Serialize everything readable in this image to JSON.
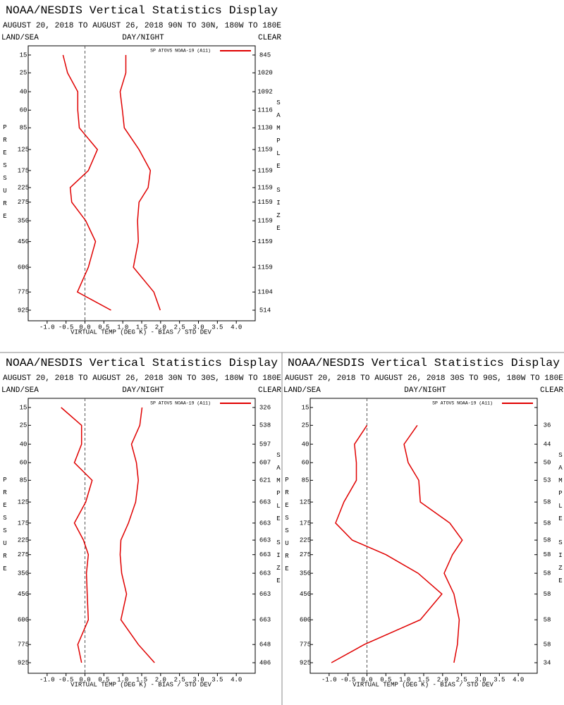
{
  "chart_data": [
    {
      "type": "line",
      "title": "NOAA/NESDIS Vertical Statistics Display",
      "subtitle": "AUGUST 20, 2018 TO AUGUST 26, 2018 90N TO 30N, 180W TO 180E",
      "top_labels": [
        "LAND/SEA",
        "DAY/NIGHT",
        "CLEAR"
      ],
      "ylabel": "PRESSURE",
      "y2label": "SAMPLE SIZE",
      "xlabel": "VIRTUAL TEMP (DEG K) - BIAS / STD DEV",
      "categories": [
        15,
        25,
        40,
        60,
        85,
        125,
        175,
        225,
        275,
        350,
        450,
        600,
        775,
        925
      ],
      "sample_size": [
        845,
        1020,
        1092,
        1116,
        1130,
        1159,
        1159,
        1159,
        1159,
        1159,
        1159,
        1159,
        1104,
        514
      ],
      "series": [
        {
          "name": "SP ATOVS NOAA-19 (A11)",
          "color": "#e00000",
          "values": [
            -0.58,
            -0.46,
            -0.19,
            -0.19,
            -0.15,
            0.33,
            0.09,
            -0.39,
            -0.35,
            0.02,
            0.28,
            0.09,
            -0.2,
            0.69
          ],
          "std_dev": [
            1.08,
            1.08,
            0.93,
            0.99,
            1.04,
            1.43,
            1.73,
            1.67,
            1.43,
            1.39,
            1.41,
            1.28,
            1.82,
            1.99
          ]
        }
      ],
      "xlim": [
        -1.5,
        4.5
      ],
      "xticks": [
        {
          "value": -1,
          "label": "-1.0"
        },
        -0.5,
        {
          "value": 0,
          "label": "0.0"
        },
        0.5,
        {
          "value": 1,
          "label": "1.0"
        },
        1.5,
        {
          "value": 2,
          "label": "2.0"
        },
        2.5,
        {
          "value": 3,
          "label": "3.0"
        },
        3.5,
        {
          "value": 4,
          "label": "4.0"
        }
      ]
    },
    {
      "type": "line",
      "title": "NOAA/NESDIS Vertical Statistics Display",
      "subtitle": "AUGUST 20, 2018 TO AUGUST 26, 2018 30N TO 30S, 180W TO 180E",
      "top_labels": [
        "LAND/SEA",
        "DAY/NIGHT",
        "CLEAR"
      ],
      "ylabel": "PRESSURE",
      "y2label": "SAMPLE SIZE",
      "xlabel": "VIRTUAL TEMP (DEG K) - BIAS / STD DEV",
      "categories": [
        15,
        25,
        40,
        60,
        85,
        125,
        175,
        225,
        275,
        350,
        450,
        600,
        775,
        925
      ],
      "sample_size": [
        326,
        538,
        597,
        607,
        621,
        663,
        663,
        663,
        663,
        663,
        663,
        663,
        648,
        406
      ],
      "series": [
        {
          "name": "SP ATOVS NOAA-19 (A11)",
          "color": "#e00000",
          "values": [
            -0.63,
            -0.09,
            -0.09,
            -0.28,
            0.19,
            0.02,
            -0.28,
            -0.04,
            0.09,
            0.04,
            0.06,
            0.09,
            -0.19,
            -0.09
          ],
          "std_dev": [
            1.51,
            1.45,
            1.23,
            1.36,
            1.41,
            1.34,
            1.15,
            0.95,
            0.93,
            0.97,
            1.1,
            0.95,
            1.41,
            1.84
          ]
        }
      ],
      "xlim": [
        -1.5,
        4.5
      ],
      "xticks": [
        {
          "value": -1,
          "label": "-1.0"
        },
        -0.5,
        {
          "value": 0,
          "label": "0.0"
        },
        0.5,
        {
          "value": 1,
          "label": "1.0"
        },
        1.5,
        {
          "value": 2,
          "label": "2.0"
        },
        2.5,
        {
          "value": 3,
          "label": "3.0"
        },
        3.5,
        {
          "value": 4,
          "label": "4.0"
        }
      ]
    },
    {
      "type": "line",
      "title": "NOAA/NESDIS Vertical Statistics Display",
      "subtitle": "AUGUST 20, 2018 TO AUGUST 26, 2018 30S TO 90S, 180W TO 180E",
      "top_labels": [
        "LAND/SEA",
        "DAY/NIGHT",
        "CLEAR"
      ],
      "ylabel": "PRESSURE",
      "y2label": "SAMPLE SIZE",
      "xlabel": "VIRTUAL TEMP (DEG K) - BIAS / STD DEV",
      "categories": [
        15,
        25,
        40,
        60,
        85,
        125,
        175,
        225,
        275,
        350,
        450,
        600,
        775,
        925
      ],
      "sample_size": [
        null,
        36,
        44,
        50,
        53,
        58,
        58,
        58,
        58,
        58,
        58,
        58,
        58,
        34
      ],
      "series": [
        {
          "name": "SP ATOVS NOAA-19 (A11)",
          "color": "#e00000",
          "values": [
            null,
            0,
            -0.33,
            -0.28,
            -0.28,
            -0.61,
            -0.83,
            -0.39,
            0.5,
            1.35,
            1.98,
            1.41,
            -0.07,
            -0.94
          ],
          "std_dev": [
            null,
            1.33,
            0.98,
            1.09,
            1.37,
            1.41,
            2.19,
            2.52,
            2.26,
            2.04,
            2.3,
            2.44,
            2.39,
            2.3
          ]
        }
      ],
      "xlim": [
        -1.5,
        4.5
      ],
      "xticks": [
        {
          "value": -1,
          "label": "-1.0"
        },
        -0.5,
        {
          "value": 0,
          "label": "0.0"
        },
        0.5,
        {
          "value": 1,
          "label": "1.0"
        },
        1.5,
        {
          "value": 2,
          "label": "2.0"
        },
        2.5,
        {
          "value": 3,
          "label": "3.0"
        },
        3.5,
        {
          "value": 4,
          "label": "4.0"
        }
      ]
    }
  ]
}
